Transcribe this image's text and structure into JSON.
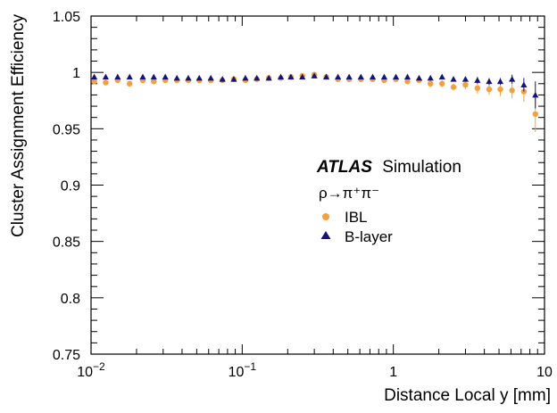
{
  "chart_data": {
    "type": "scatter",
    "xscale": "log",
    "xlim": [
      0.01,
      10
    ],
    "ylim": [
      0.75,
      1.05
    ],
    "xlabel": "Distance Local y [mm]",
    "ylabel": "Cluster Assignment Efficiency",
    "x_ticks": [
      {
        "value": 0.01,
        "base": "10",
        "exp": "−2"
      },
      {
        "value": 0.1,
        "base": "10",
        "exp": "−1"
      },
      {
        "value": 1,
        "base": "1",
        "exp": ""
      },
      {
        "value": 10,
        "base": "10",
        "exp": ""
      }
    ],
    "y_ticks": [
      "0.75",
      "0.8",
      "0.85",
      "0.9",
      "0.95",
      "1",
      "1.05"
    ],
    "annotation": {
      "experiment": "ATLAS",
      "label": "Simulation",
      "process": "ρ→π⁺π⁻"
    },
    "legend_placement": "center-right",
    "series": [
      {
        "name": "IBL",
        "marker": "circle",
        "color": "#f5a040",
        "x": [
          0.0105,
          0.0125,
          0.015,
          0.018,
          0.022,
          0.026,
          0.031,
          0.037,
          0.044,
          0.052,
          0.062,
          0.074,
          0.088,
          0.105,
          0.125,
          0.15,
          0.18,
          0.21,
          0.25,
          0.3,
          0.36,
          0.43,
          0.51,
          0.61,
          0.73,
          0.87,
          1.04,
          1.24,
          1.48,
          1.76,
          2.1,
          2.5,
          3.0,
          3.6,
          4.3,
          5.1,
          6.1,
          7.3,
          8.7
        ],
        "y": [
          0.992,
          0.991,
          0.993,
          0.99,
          0.993,
          0.992,
          0.993,
          0.993,
          0.993,
          0.993,
          0.993,
          0.993,
          0.994,
          0.993,
          0.994,
          0.995,
          0.995,
          0.996,
          0.997,
          0.998,
          0.996,
          0.994,
          0.994,
          0.994,
          0.994,
          0.993,
          0.994,
          0.992,
          0.993,
          0.99,
          0.99,
          0.987,
          0.989,
          0.986,
          0.985,
          0.985,
          0.984,
          0.983,
          0.963
        ],
        "yerr": [
          0.0015,
          0.0015,
          0.0015,
          0.0015,
          0.0015,
          0.0015,
          0.0015,
          0.0015,
          0.0015,
          0.0015,
          0.0015,
          0.0015,
          0.0015,
          0.0015,
          0.0015,
          0.0015,
          0.0015,
          0.0015,
          0.0015,
          0.0015,
          0.0015,
          0.0015,
          0.0015,
          0.0015,
          0.002,
          0.002,
          0.002,
          0.002,
          0.002,
          0.003,
          0.003,
          0.003,
          0.004,
          0.005,
          0.005,
          0.006,
          0.007,
          0.009,
          0.016
        ]
      },
      {
        "name": "B-layer",
        "marker": "triangle",
        "color": "#14147a",
        "x": [
          0.0105,
          0.0125,
          0.015,
          0.018,
          0.022,
          0.026,
          0.031,
          0.037,
          0.044,
          0.052,
          0.062,
          0.074,
          0.088,
          0.105,
          0.125,
          0.15,
          0.18,
          0.21,
          0.25,
          0.3,
          0.36,
          0.43,
          0.51,
          0.61,
          0.73,
          0.87,
          1.04,
          1.24,
          1.48,
          1.76,
          2.1,
          2.5,
          3.0,
          3.6,
          4.3,
          5.1,
          6.1,
          7.3,
          8.7
        ],
        "y": [
          0.996,
          0.996,
          0.996,
          0.996,
          0.996,
          0.996,
          0.996,
          0.995,
          0.995,
          0.995,
          0.995,
          0.994,
          0.994,
          0.995,
          0.995,
          0.995,
          0.996,
          0.996,
          0.996,
          0.997,
          0.996,
          0.996,
          0.996,
          0.996,
          0.996,
          0.996,
          0.996,
          0.996,
          0.995,
          0.995,
          0.996,
          0.994,
          0.994,
          0.993,
          0.992,
          0.992,
          0.994,
          0.989,
          0.98
        ],
        "yerr": [
          0.001,
          0.001,
          0.001,
          0.001,
          0.001,
          0.001,
          0.001,
          0.001,
          0.001,
          0.001,
          0.001,
          0.001,
          0.001,
          0.001,
          0.001,
          0.001,
          0.001,
          0.001,
          0.001,
          0.001,
          0.001,
          0.001,
          0.001,
          0.001,
          0.001,
          0.001,
          0.0015,
          0.0015,
          0.0015,
          0.0015,
          0.002,
          0.002,
          0.002,
          0.003,
          0.003,
          0.003,
          0.004,
          0.006,
          0.012
        ]
      }
    ]
  }
}
